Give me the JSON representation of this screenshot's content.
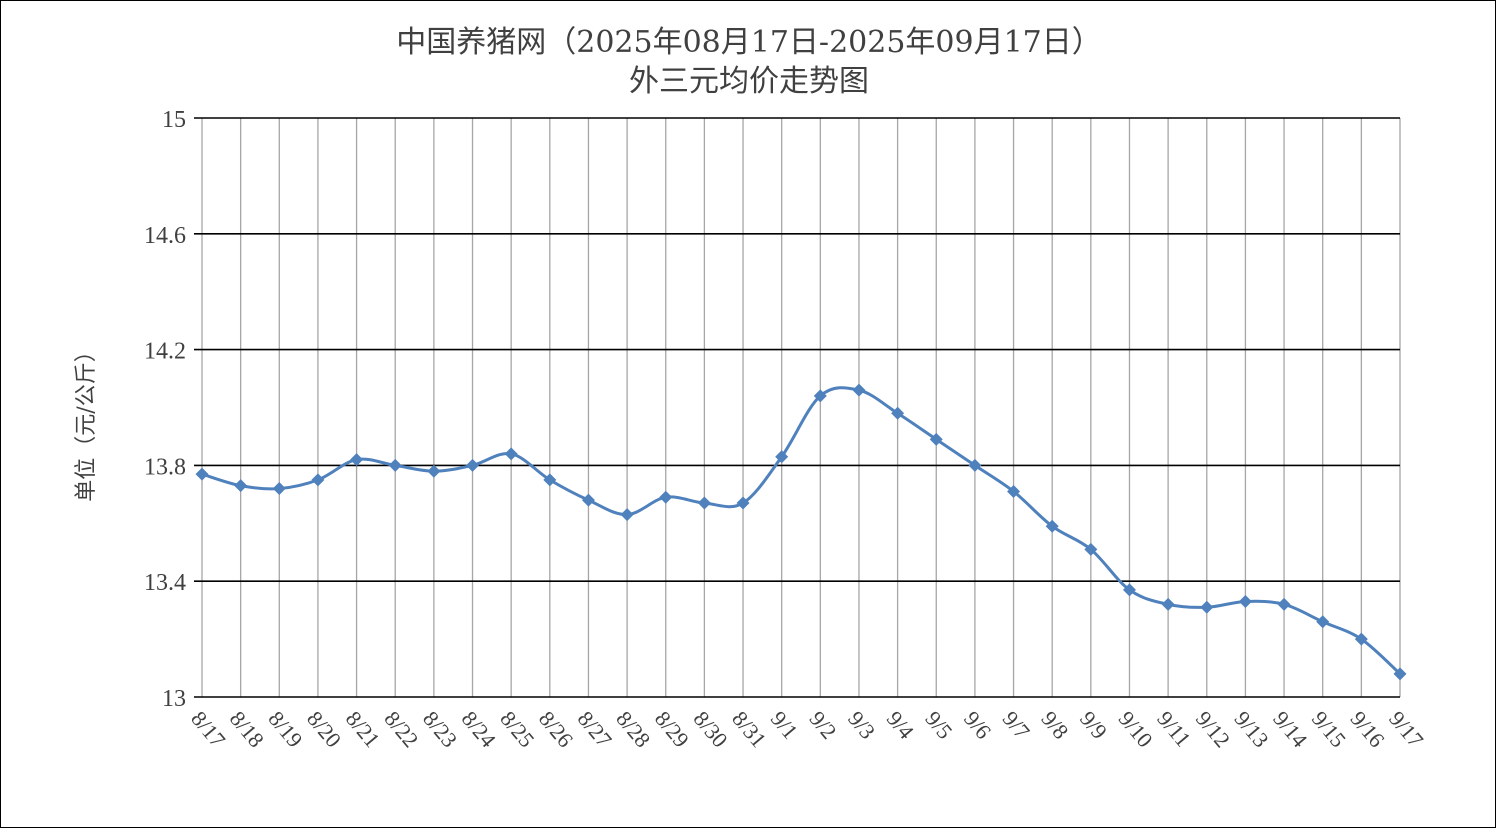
{
  "chart_data": {
    "type": "line",
    "title": "中国养猪网（2025年08月17日-2025年09月17日）",
    "subtitle": "外三元均价走势图",
    "xlabel": "",
    "ylabel": "单位（元/公斤）",
    "ylim": [
      13,
      15
    ],
    "yticks": [
      "13",
      "13.4",
      "13.8",
      "14.2",
      "14.6",
      "15"
    ],
    "grid": true,
    "smooth": true,
    "line_color": "#4F81BD",
    "categories": [
      "8/17",
      "8/18",
      "8/19",
      "8/20",
      "8/21",
      "8/22",
      "8/23",
      "8/24",
      "8/25",
      "8/26",
      "8/27",
      "8/28",
      "8/29",
      "8/30",
      "8/31",
      "9/1",
      "9/2",
      "9/3",
      "9/4",
      "9/5",
      "9/6",
      "9/7",
      "9/8",
      "9/9",
      "9/10",
      "9/11",
      "9/12",
      "9/13",
      "9/14",
      "9/15",
      "9/16",
      "9/17"
    ],
    "values": [
      13.77,
      13.73,
      13.72,
      13.75,
      13.82,
      13.8,
      13.78,
      13.8,
      13.84,
      13.75,
      13.68,
      13.63,
      13.69,
      13.67,
      13.67,
      13.83,
      14.04,
      14.06,
      13.98,
      13.89,
      13.8,
      13.71,
      13.59,
      13.51,
      13.37,
      13.32,
      13.31,
      13.33,
      13.32,
      13.26,
      13.2,
      13.08
    ]
  }
}
